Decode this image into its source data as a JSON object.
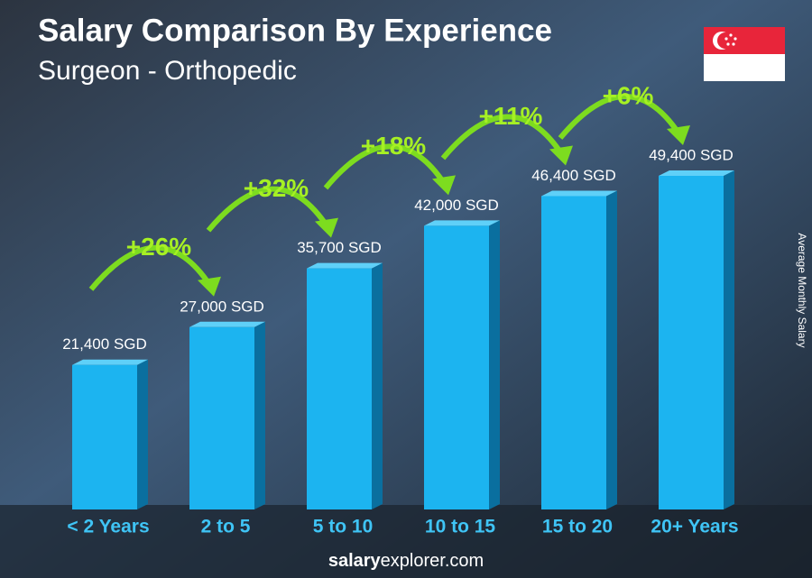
{
  "chart_data": {
    "type": "bar",
    "title": "Salary Comparison By Experience",
    "subtitle": "Surgeon - Orthopedic",
    "y_label": "Average Monthly Salary",
    "categories": [
      "< 2 Years",
      "2 to 5",
      "5 to 10",
      "10 to 15",
      "15 to 20",
      "20+ Years"
    ],
    "values": [
      21400,
      27000,
      35700,
      42000,
      46400,
      49400
    ],
    "value_labels": [
      "21,400 SGD",
      "27,000 SGD",
      "35,700 SGD",
      "42,000 SGD",
      "46,400 SGD",
      "49,400 SGD"
    ],
    "changes": [
      "+26%",
      "+32%",
      "+18%",
      "+11%",
      "+6%"
    ],
    "color": "#1cb4f0",
    "footer": [
      "salary",
      "explorer.com"
    ]
  }
}
